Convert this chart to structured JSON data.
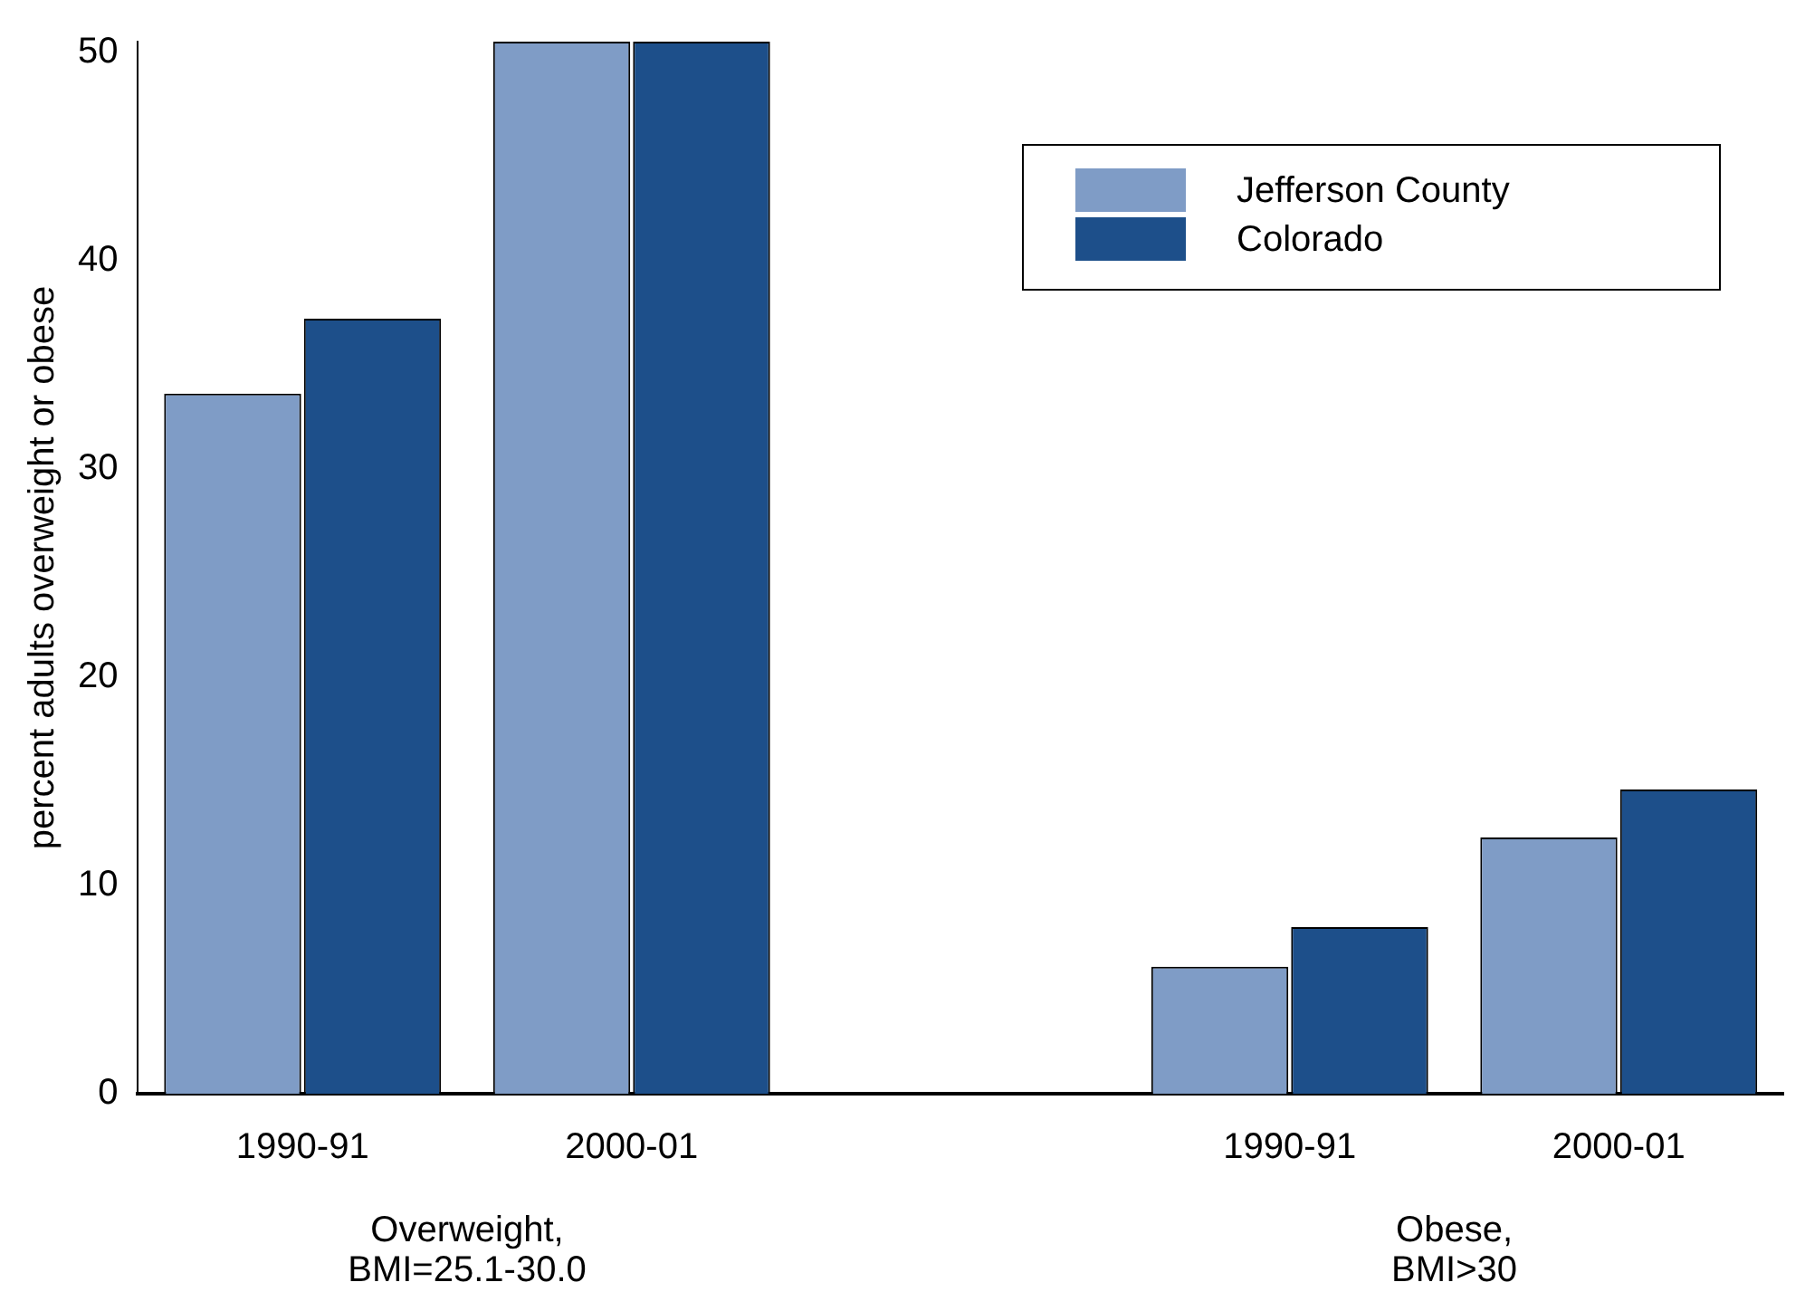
{
  "chart_data": {
    "type": "bar",
    "ylabel": "percent adults overweight or obese",
    "categories": [
      "1990-91",
      "2000-01",
      null,
      "1990-91",
      "2000-01"
    ],
    "series": [
      {
        "name": "Jefferson County",
        "color": "#7f9cc6",
        "values": [
          33.6,
          50.5,
          null,
          6.1,
          12.3
        ]
      },
      {
        "name": "Colorado",
        "color": "#1d4f8a",
        "values": [
          37.2,
          50.5,
          null,
          8.0,
          14.6
        ]
      }
    ],
    "annotations": [
      "Overweight,\nBMI=25.1-30.0",
      "Obese,\nBMI>30"
    ],
    "ylim": [
      0,
      50.5
    ],
    "yticks": [
      0,
      10,
      20,
      30,
      40,
      50
    ],
    "grid": false,
    "legend": "top right"
  }
}
